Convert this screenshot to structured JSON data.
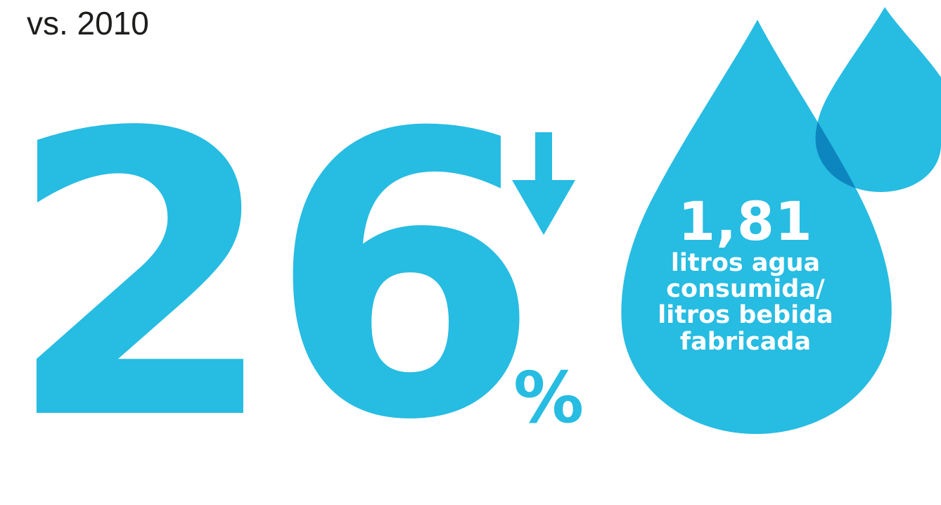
{
  "header": {
    "subtitle": "vs. 2010"
  },
  "metric": {
    "value": "26",
    "unit": "%",
    "trend_icon": "arrow-down-icon"
  },
  "water_ratio": {
    "value": "1,81",
    "label_lines": [
      "litros agua",
      "consumida/",
      "litros bebida",
      "fabricada"
    ],
    "icon": "water-drop-icon"
  },
  "colors": {
    "accent": "#27bce2",
    "overlap": "#0d86bf",
    "text": "#1d1d1b",
    "background": "#ffffff"
  }
}
